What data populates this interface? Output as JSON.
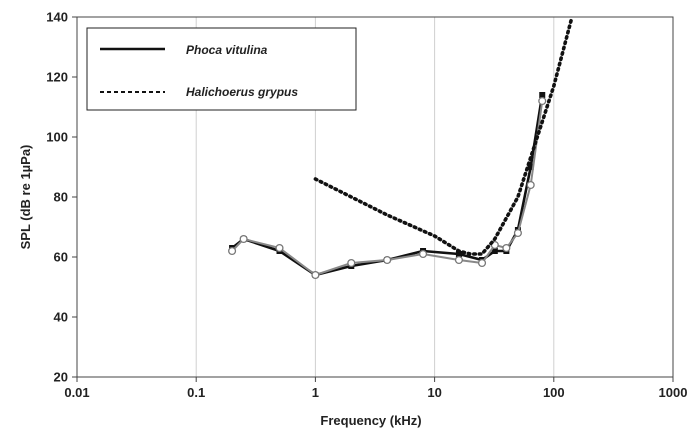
{
  "chart_data": {
    "type": "line",
    "title": "",
    "xlabel": "Frequency (kHz)",
    "ylabel": "SPL (dB re 1µPa)",
    "x_scale": "log",
    "xlim": [
      0.01,
      1000
    ],
    "ylim": [
      20,
      140
    ],
    "x_ticks": [
      0.01,
      0.1,
      1,
      10,
      100,
      1000
    ],
    "x_tick_labels": [
      "0.01",
      "0.1",
      "1",
      "10",
      "100",
      "1000"
    ],
    "y_ticks": [
      20,
      40,
      60,
      80,
      100,
      120,
      140
    ],
    "y_tick_labels": [
      "20",
      "40",
      "60",
      "80",
      "100",
      "120",
      "140"
    ],
    "grid": "vertical gridlines at decades",
    "legend_position": "top-left",
    "series": [
      {
        "name": "Phoca vitulina",
        "style": "solid",
        "color": "#111111",
        "x": [
          0.2,
          0.25,
          0.5,
          1,
          2,
          4,
          8,
          16,
          25,
          32,
          40,
          50,
          64,
          80
        ],
        "y": [
          63,
          66,
          62,
          54,
          57,
          59,
          62,
          61,
          59,
          62,
          62,
          69,
          90,
          114
        ]
      },
      {
        "name": "",
        "style": "solid-open-circles",
        "color": "#888888",
        "x": [
          0.2,
          0.25,
          0.5,
          1,
          2,
          4,
          8,
          16,
          25,
          32,
          40,
          50,
          64,
          80
        ],
        "y": [
          62,
          66,
          63,
          54,
          58,
          59,
          61,
          59,
          58,
          64,
          63,
          68,
          84,
          112
        ]
      },
      {
        "name": "Halichoerus grypus",
        "style": "dotted",
        "color": "#111111",
        "x": [
          1,
          4,
          10,
          16,
          20,
          25,
          32,
          50,
          100,
          140
        ],
        "y": [
          86,
          74,
          67,
          62,
          61,
          61,
          66,
          80,
          117,
          139
        ]
      }
    ]
  }
}
